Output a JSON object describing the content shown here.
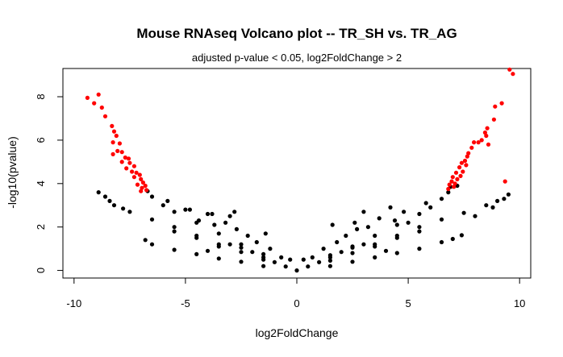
{
  "chart_data": {
    "type": "scatter",
    "title": "Mouse RNAseq Volcano plot -- TR_SH vs. TR_AG",
    "subtitle": "adjusted p-value < 0.05, log2FoldChange > 2",
    "xlabel": "log2FoldChange",
    "ylabel": "-log10(pvalue)",
    "xlim": [
      -10.5,
      10.5
    ],
    "ylim": [
      -0.35,
      9.3
    ],
    "xticks": [
      -10,
      -5,
      0,
      5,
      10
    ],
    "xtick_labels": [
      "-10",
      "-5",
      "0",
      "5",
      "10"
    ],
    "yticks": [
      0,
      2,
      4,
      6,
      8
    ],
    "ytick_labels": [
      "0",
      "2",
      "4",
      "6",
      "8"
    ],
    "grid": false,
    "legend": "none",
    "colors": {
      "not_significant": "#000000",
      "significant": "#ff0000"
    },
    "series": [
      {
        "color": "#000000",
        "points": [
          [
            0,
            0
          ],
          [
            0.5,
            0.18
          ],
          [
            -0.5,
            0.18
          ],
          [
            1,
            0.38
          ],
          [
            -1,
            0.38
          ],
          [
            1.5,
            0.6
          ],
          [
            -1.5,
            0.6
          ],
          [
            2,
            0.85
          ],
          [
            -2,
            0.85
          ],
          [
            2.5,
            1.05
          ],
          [
            -2.5,
            1.05
          ],
          [
            3,
            1.2
          ],
          [
            -3,
            1.2
          ],
          [
            3.5,
            1.1
          ],
          [
            -3.5,
            1.1
          ],
          [
            4,
            0.9
          ],
          [
            -4,
            0.9
          ],
          [
            0.7,
            0.6
          ],
          [
            -0.7,
            0.6
          ],
          [
            1.2,
            1.0
          ],
          [
            -1.2,
            1.0
          ],
          [
            1.8,
            1.3
          ],
          [
            -1.8,
            1.3
          ],
          [
            2.2,
            1.6
          ],
          [
            -2.2,
            1.6
          ],
          [
            2.7,
            1.9
          ],
          [
            -2.7,
            1.9
          ],
          [
            3.2,
            2.0
          ],
          [
            -3.2,
            2.2
          ],
          [
            3.7,
            2.4
          ],
          [
            -3.7,
            2.1
          ],
          [
            4.4,
            2.3
          ],
          [
            -4.4,
            2.3
          ],
          [
            4.2,
            2.9
          ],
          [
            -4.0,
            2.6
          ],
          [
            3.0,
            2.7
          ],
          [
            -3.0,
            2.5
          ],
          [
            -2.8,
            2.7
          ],
          [
            2.6,
            2.2
          ],
          [
            -5.0,
            2.8
          ],
          [
            5.0,
            2.2
          ],
          [
            -3.8,
            2.6
          ],
          [
            1.6,
            2.1
          ],
          [
            -1.4,
            1.7
          ],
          [
            4.5,
            1.5
          ],
          [
            -4.5,
            1.5
          ],
          [
            0.3,
            0.5
          ],
          [
            -0.3,
            0.5
          ],
          [
            5.5,
            1.8
          ],
          [
            -5.5,
            1.8
          ],
          [
            1.5,
            0.2
          ],
          [
            2.5,
            0.4
          ],
          [
            3.5,
            0.6
          ],
          [
            4.5,
            0.8
          ],
          [
            5.5,
            1.0
          ],
          [
            6.5,
            1.3
          ],
          [
            7.0,
            1.45
          ],
          [
            7.4,
            1.62
          ],
          [
            -1.5,
            0.2
          ],
          [
            -2.5,
            0.4
          ],
          [
            -3.5,
            0.55
          ],
          [
            -4.5,
            0.75
          ],
          [
            -5.5,
            0.95
          ],
          [
            -6.5,
            1.2
          ],
          [
            -6.8,
            1.4
          ],
          [
            1.5,
            0.45
          ],
          [
            2.5,
            0.8
          ],
          [
            3.5,
            1.2
          ],
          [
            4.5,
            1.6
          ],
          [
            5.5,
            2.0
          ],
          [
            6.5,
            2.35
          ],
          [
            7.5,
            2.65
          ],
          [
            8.5,
            3.0
          ],
          [
            9.0,
            3.2
          ],
          [
            -1.5,
            0.5
          ],
          [
            -2.5,
            0.85
          ],
          [
            -3.5,
            1.2
          ],
          [
            -4.5,
            1.6
          ],
          [
            -5.5,
            2.0
          ],
          [
            -6.5,
            2.35
          ],
          [
            -7.5,
            2.7
          ],
          [
            -8.2,
            3.0
          ],
          [
            1.5,
            0.7
          ],
          [
            2.5,
            1.1
          ],
          [
            3.5,
            1.6
          ],
          [
            4.5,
            2.1
          ],
          [
            5.5,
            2.6
          ],
          [
            6.0,
            2.9
          ],
          [
            6.5,
            3.3
          ],
          [
            6.8,
            3.6
          ],
          [
            -1.5,
            0.75
          ],
          [
            -2.5,
            1.2
          ],
          [
            -3.5,
            1.7
          ],
          [
            -4.5,
            2.2
          ],
          [
            -5.5,
            2.7
          ],
          [
            -6.0,
            3.0
          ],
          [
            -6.5,
            3.4
          ],
          [
            -6.7,
            3.65
          ],
          [
            8.0,
            2.5
          ],
          [
            8.8,
            2.9
          ],
          [
            9.3,
            3.3
          ],
          [
            9.5,
            3.5
          ],
          [
            -8.6,
            3.4
          ],
          [
            -8.9,
            3.6
          ],
          [
            -7.8,
            2.85
          ],
          [
            -8.4,
            3.2
          ],
          [
            4.8,
            2.7
          ],
          [
            -4.8,
            2.8
          ],
          [
            5.8,
            3.1
          ],
          [
            -5.8,
            3.2
          ],
          [
            7.2,
            3.9
          ],
          [
            6.9,
            3.85
          ]
        ]
      },
      {
        "color": "#ff0000",
        "points": [
          [
            -9.4,
            7.95
          ],
          [
            -9.1,
            7.7
          ],
          [
            -8.9,
            8.1
          ],
          [
            -8.75,
            7.5
          ],
          [
            -8.6,
            7.1
          ],
          [
            -8.3,
            6.65
          ],
          [
            -8.2,
            6.4
          ],
          [
            -8.1,
            6.2
          ],
          [
            -8.25,
            5.9
          ],
          [
            -7.95,
            5.85
          ],
          [
            -8.05,
            5.5
          ],
          [
            -7.85,
            5.45
          ],
          [
            -8.25,
            5.35
          ],
          [
            -7.7,
            5.2
          ],
          [
            -7.55,
            5.15
          ],
          [
            -7.85,
            5.0
          ],
          [
            -7.5,
            4.95
          ],
          [
            -7.3,
            4.8
          ],
          [
            -7.65,
            4.7
          ],
          [
            -7.4,
            4.55
          ],
          [
            -7.2,
            4.5
          ],
          [
            -7.05,
            4.4
          ],
          [
            -7.3,
            4.3
          ],
          [
            -7.0,
            4.2
          ],
          [
            -6.9,
            4.05
          ],
          [
            -7.15,
            3.95
          ],
          [
            -6.8,
            3.9
          ],
          [
            -6.95,
            3.8
          ],
          [
            -6.75,
            3.7
          ],
          [
            -7.0,
            3.65
          ],
          [
            9.55,
            9.25
          ],
          [
            9.7,
            9.05
          ],
          [
            9.35,
            4.1
          ],
          [
            9.2,
            7.7
          ],
          [
            8.9,
            7.55
          ],
          [
            8.85,
            6.95
          ],
          [
            8.55,
            6.55
          ],
          [
            8.45,
            6.35
          ],
          [
            8.5,
            6.2
          ],
          [
            8.3,
            6.0
          ],
          [
            8.15,
            5.9
          ],
          [
            7.95,
            5.9
          ],
          [
            8.6,
            5.8
          ],
          [
            7.85,
            5.65
          ],
          [
            7.7,
            5.4
          ],
          [
            7.65,
            5.25
          ],
          [
            7.55,
            5.05
          ],
          [
            7.4,
            4.95
          ],
          [
            7.6,
            4.85
          ],
          [
            7.3,
            4.75
          ],
          [
            7.45,
            4.55
          ],
          [
            7.15,
            4.5
          ],
          [
            7.35,
            4.35
          ],
          [
            7.0,
            4.3
          ],
          [
            7.2,
            4.2
          ],
          [
            6.95,
            4.1
          ],
          [
            7.1,
            4.0
          ],
          [
            6.85,
            3.95
          ],
          [
            7.05,
            3.85
          ],
          [
            6.8,
            3.75
          ]
        ]
      }
    ]
  }
}
